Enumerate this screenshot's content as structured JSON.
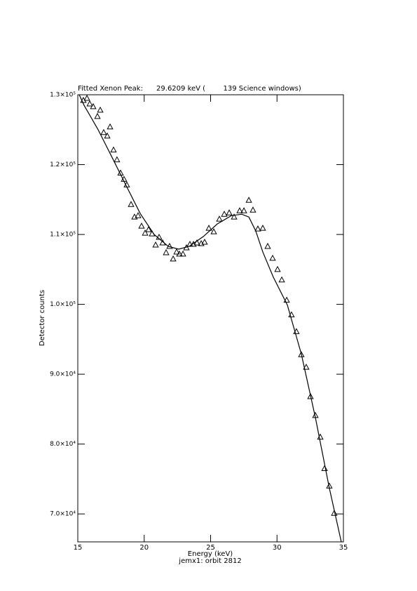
{
  "chart_data": {
    "type": "scatter",
    "title": "Fitted Xenon Peak:      29.6209 keV (        139 Science windows)",
    "x_label": "Energy (keV)",
    "subtitle": "jemx1: orbit 2812",
    "y_label": "Detector counts",
    "xlim": [
      15,
      35
    ],
    "xticks": [
      15,
      20,
      25,
      30,
      35
    ],
    "ylim": [
      66000,
      130000
    ],
    "yticks": [
      {
        "value": 70000,
        "label": "7.0×10⁴"
      },
      {
        "value": 80000,
        "label": "8.0×10⁴"
      },
      {
        "value": 90000,
        "label": "9.0×10⁴"
      },
      {
        "value": 100000,
        "label": "1.0×10⁵"
      },
      {
        "value": 110000,
        "label": "1.1×10⁵"
      },
      {
        "value": 120000,
        "label": "1.2×10⁵"
      },
      {
        "value": 130000,
        "label": "1.3×10⁵"
      }
    ],
    "color": "#000000",
    "series": [
      {
        "style": "triangle",
        "x": [
          15.42,
          15.69,
          15.9,
          16.16,
          16.48,
          16.69,
          16.95,
          17.22,
          17.43,
          17.69,
          17.95,
          18.22,
          18.48,
          18.69,
          19.01,
          19.27,
          19.54,
          19.8,
          20.07,
          20.33,
          20.59,
          20.86,
          21.12,
          21.39,
          21.65,
          21.91,
          22.18,
          22.44,
          22.65,
          22.92,
          23.18,
          23.44,
          23.71,
          23.97,
          24.29,
          24.55,
          24.87,
          25.24,
          25.66,
          26.03,
          26.4,
          26.77,
          27.19,
          27.51,
          27.88,
          28.19,
          28.56,
          28.93,
          29.3,
          29.67,
          30.04,
          30.36,
          30.73,
          31.09,
          31.46,
          31.83,
          32.2,
          32.52,
          32.89,
          33.26,
          33.58,
          33.94,
          34.31
        ],
        "values": [
          129200,
          129500,
          128700,
          128300,
          126900,
          127800,
          124600,
          124100,
          125400,
          122100,
          120700,
          118800,
          117900,
          117100,
          114300,
          112500,
          112700,
          111200,
          110200,
          110700,
          110100,
          108500,
          109600,
          108800,
          107400,
          108300,
          106500,
          107500,
          107200,
          107200,
          108100,
          108600,
          108600,
          108800,
          108700,
          108900,
          110900,
          110400,
          112200,
          112900,
          113100,
          112500,
          113400,
          113400,
          114900,
          113500,
          110800,
          110900,
          108300,
          106600,
          105000,
          103500,
          100600,
          98500,
          96100,
          92800,
          91000,
          86800,
          84100,
          81000,
          76500,
          74000,
          70100
        ]
      },
      {
        "style": "line",
        "x": [
          15.11,
          15.47,
          16.53,
          17.59,
          18.64,
          19.7,
          20.75,
          21.81,
          22.6,
          23.39,
          24.45,
          25.5,
          26.56,
          27.35,
          27.88,
          28.4,
          28.93,
          29.72,
          30.78,
          31.83,
          32.89,
          33.94,
          34.84
        ],
        "values": [
          130000,
          128500,
          125000,
          121000,
          117000,
          113000,
          110000,
          108300,
          107900,
          108300,
          109700,
          111500,
          112700,
          112900,
          112500,
          110500,
          107500,
          103900,
          99900,
          92900,
          83800,
          73700,
          66000
        ]
      }
    ]
  }
}
